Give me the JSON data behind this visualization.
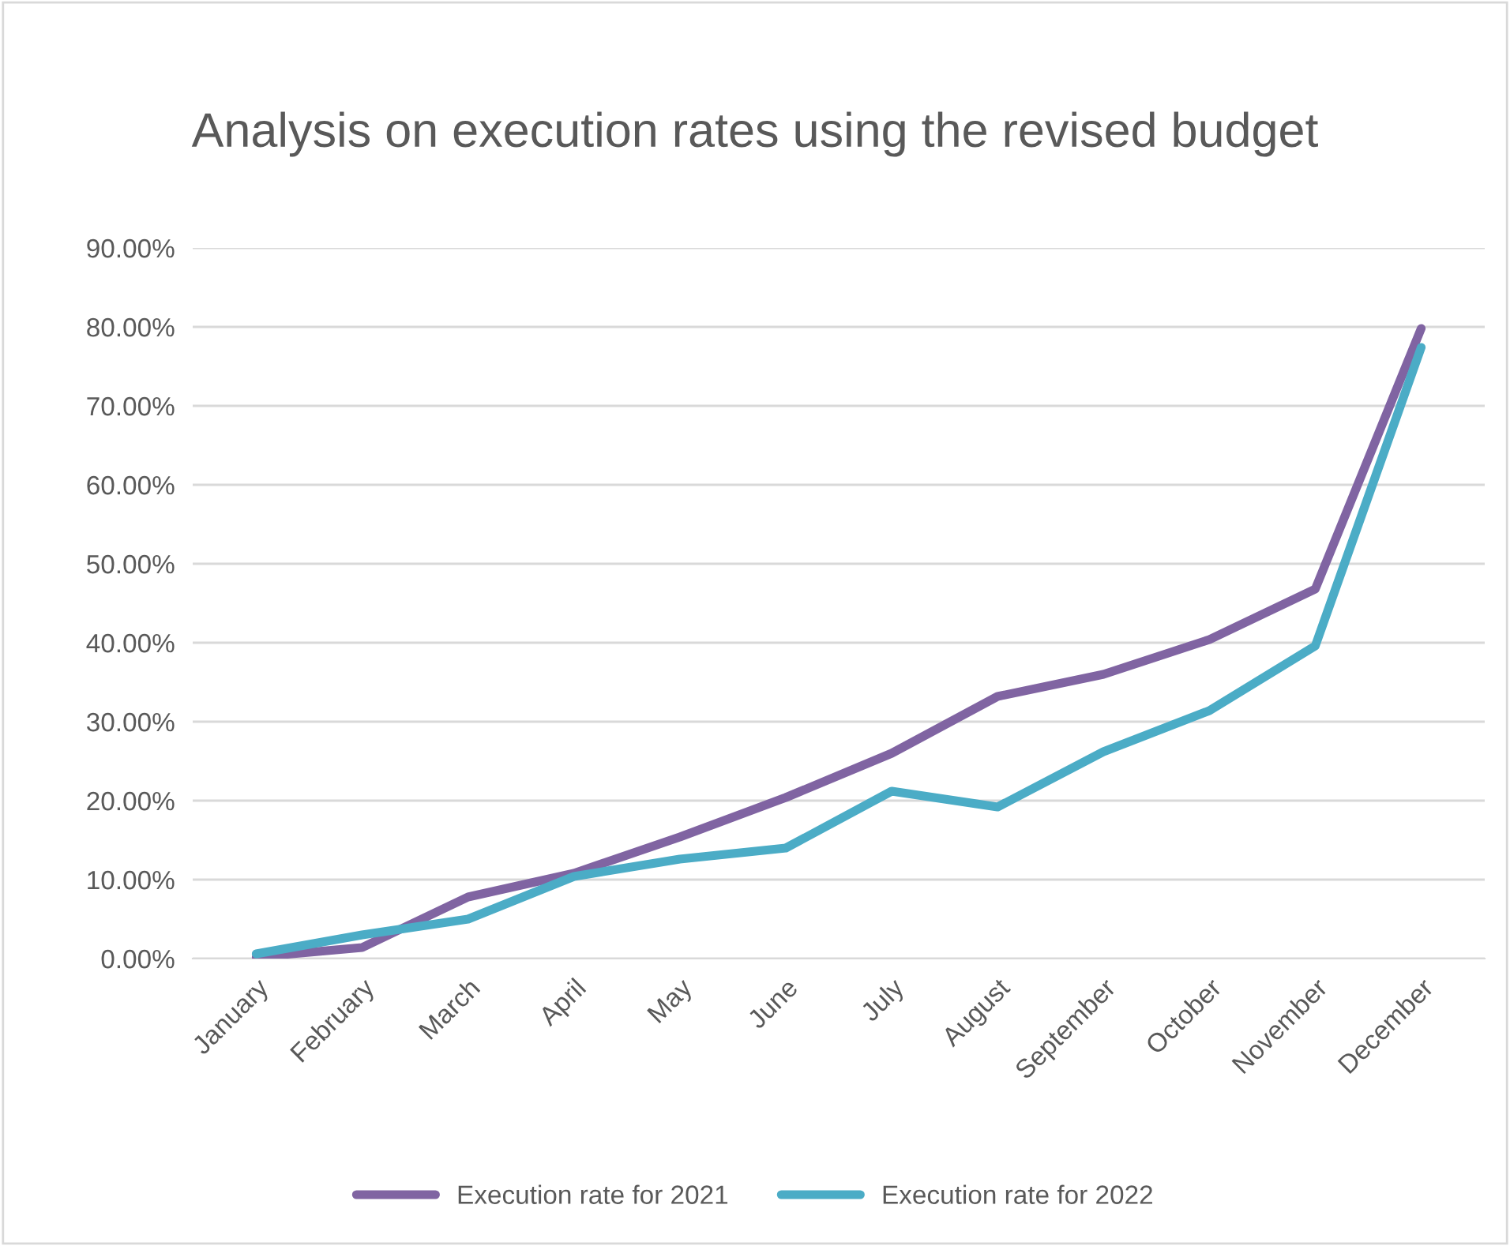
{
  "chart_data": {
    "type": "line",
    "title": "Analysis on execution rates using the revised budget",
    "categories": [
      "January",
      "February",
      "March",
      "April",
      "May",
      "June",
      "July",
      "August",
      "September",
      "October",
      "November",
      "December"
    ],
    "series": [
      {
        "name": "Execution rate for 2021",
        "color": "#8064a2",
        "values": [
          0.2,
          1.4,
          7.8,
          10.8,
          15.4,
          20.4,
          26.0,
          33.2,
          36.0,
          40.4,
          46.8,
          79.8
        ]
      },
      {
        "name": "Execution rate for 2022",
        "color": "#4bacc6",
        "values": [
          0.6,
          3.0,
          5.0,
          10.4,
          12.6,
          14.0,
          21.2,
          19.2,
          26.2,
          31.4,
          39.6,
          77.4
        ]
      }
    ],
    "ylim": [
      0,
      90
    ],
    "yticks": [
      {
        "value": 0,
        "label": "0.00%"
      },
      {
        "value": 10,
        "label": "10.00%"
      },
      {
        "value": 20,
        "label": "20.00%"
      },
      {
        "value": 30,
        "label": "30.00%"
      },
      {
        "value": 40,
        "label": "40.00%"
      },
      {
        "value": 50,
        "label": "50.00%"
      },
      {
        "value": 60,
        "label": "60.00%"
      },
      {
        "value": 70,
        "label": "70.00%"
      },
      {
        "value": 80,
        "label": "80.00%"
      },
      {
        "value": 90,
        "label": "90.00%"
      }
    ],
    "grid": "y",
    "legend": "bottom",
    "marker": "none",
    "line_style": "solid"
  }
}
